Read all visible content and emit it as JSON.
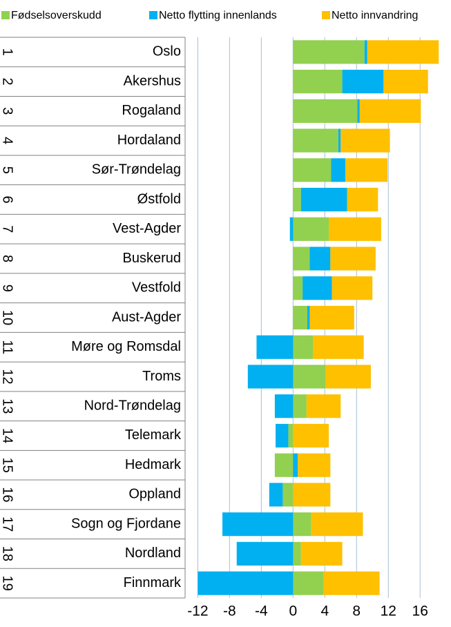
{
  "chart_data": {
    "type": "stacked-bar-horizontal",
    "categories": [
      "Oslo",
      "Akershus",
      "Rogaland",
      "Hordaland",
      "Sør-Trøndelag",
      "Østfold",
      "Vest-Agder",
      "Buskerud",
      "Vestfold",
      "Aust-Agder",
      "Møre og Romsdal",
      "Troms",
      "Nord-Trøndelag",
      "Telemark",
      "Hedmark",
      "Oppland",
      "Sogn og Fjordane",
      "Nordland",
      "Finnmark"
    ],
    "row_numbers": [
      1,
      2,
      3,
      4,
      5,
      6,
      7,
      8,
      9,
      10,
      11,
      12,
      13,
      14,
      15,
      16,
      17,
      18,
      19
    ],
    "series": [
      {
        "name": "Fødselsoverskudd",
        "color": "#92d050",
        "values": [
          9.0,
          6.2,
          8.1,
          5.7,
          4.8,
          1.0,
          4.5,
          2.1,
          1.2,
          1.8,
          2.5,
          4.1,
          1.7,
          -0.6,
          -2.3,
          -1.3,
          2.3,
          1.0,
          3.8
        ]
      },
      {
        "name": "Netto flytting innenlands",
        "color": "#00b0f0",
        "values": [
          0.35,
          5.2,
          0.3,
          0.3,
          1.8,
          5.8,
          -0.4,
          2.6,
          3.7,
          0.3,
          -4.6,
          -5.7,
          -2.3,
          -1.6,
          0.6,
          -1.7,
          -8.9,
          -7.1,
          -12.0
        ]
      },
      {
        "name": "Netto innvandring",
        "color": "#ffc000",
        "values": [
          9.0,
          5.6,
          7.7,
          6.2,
          5.3,
          3.9,
          6.6,
          5.7,
          5.1,
          5.6,
          6.4,
          5.7,
          4.3,
          4.5,
          4.1,
          4.7,
          6.5,
          5.2,
          7.1
        ]
      }
    ],
    "xlim": [
      -13.6,
      19.2
    ],
    "xticks": [
      -12,
      -8,
      -4,
      0,
      4,
      8,
      12,
      16
    ],
    "grid": true,
    "legend": "top"
  }
}
